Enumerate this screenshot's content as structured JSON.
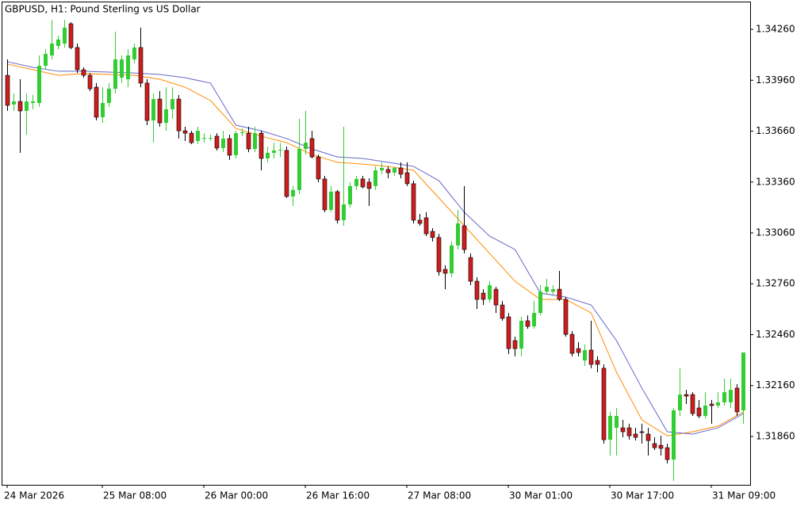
{
  "chart_data": {
    "type": "candlestick",
    "title": "GBPUSD, H1:  Pound Sterling vs US Dollar",
    "categories": [
      "24 Mar 2026",
      null,
      null,
      null,
      null,
      null,
      null,
      null,
      null,
      null,
      null,
      null,
      null,
      null,
      null,
      "25 Mar 08:00",
      null,
      null,
      null,
      null,
      null,
      null,
      null,
      null,
      null,
      null,
      null,
      null,
      null,
      null,
      null,
      "26 Mar 00:00",
      null,
      null,
      null,
      null,
      null,
      null,
      null,
      null,
      null,
      null,
      null,
      null,
      null,
      null,
      null,
      "26 Mar 16:00",
      null,
      null,
      null,
      null,
      null,
      null,
      null,
      null,
      null,
      null,
      null,
      null,
      null,
      null,
      null,
      "27 Mar 08:00",
      null,
      null,
      null,
      null,
      null,
      null,
      null,
      null,
      null,
      null,
      null,
      null,
      null,
      null,
      null,
      "30 Mar 01:00",
      null,
      null,
      null,
      null,
      null,
      null,
      null,
      null,
      null,
      null,
      null,
      null,
      null,
      null,
      null,
      "30 Mar 17:00",
      null,
      null,
      null,
      null,
      null,
      null,
      null,
      null,
      null,
      null,
      null,
      null,
      null,
      null,
      null,
      "31 Mar 09:00",
      null,
      null,
      null,
      null,
      null
    ],
    "open": [
      1.33989,
      1.33817,
      1.33835,
      1.33779,
      1.33826,
      1.33826,
      1.34045,
      1.34106,
      1.34162,
      1.34176,
      1.34293,
      1.34153,
      1.34022,
      1.33989,
      1.33919,
      1.33742,
      1.33826,
      1.3391,
      1.33975,
      1.33966,
      1.34083,
      1.34153,
      1.33943,
      1.33723,
      1.33849,
      1.33709,
      1.33789,
      1.33849,
      1.33662,
      1.33648,
      1.33602,
      1.3362,
      1.33616,
      1.3363,
      1.3356,
      1.33616,
      1.33518,
      1.33648,
      1.33648,
      1.33555,
      1.33648,
      1.33499,
      1.33532,
      1.33546,
      1.33546,
      1.33275,
      1.33313,
      1.33555,
      1.33616,
      1.33508,
      1.33378,
      1.33196,
      1.33303,
      1.33135,
      1.33228,
      1.33336,
      1.33378,
      1.33359,
      1.33336,
      1.33429,
      1.33434,
      1.33415,
      1.33443,
      1.33415,
      1.3335,
      1.33135,
      1.33149,
      1.33069,
      1.33033,
      1.32845,
      1.32822,
      1.32986,
      1.33102,
      1.32915,
      1.32775,
      1.32705,
      1.32668,
      1.32728,
      1.32635,
      1.32565,
      1.32425,
      1.32378,
      1.32542,
      1.32509,
      1.32588,
      1.32714,
      1.32714,
      1.32728,
      1.32668,
      1.32462,
      1.32378,
      1.32308,
      1.32369,
      1.32308,
      1.32262,
      1.31841,
      1.31911,
      1.31911,
      1.31911,
      1.31874,
      1.31888,
      1.31874,
      1.31818,
      1.31808,
      1.31794,
      1.31724,
      1.32014,
      1.32107,
      1.32107,
      1.32028,
      1.31981,
      1.32051,
      1.32042,
      1.32061,
      1.32061,
      1.32145,
      1.32014
    ],
    "high": [
      1.34083,
      1.33882,
      1.33966,
      1.33882,
      1.33873,
      1.34106,
      1.34143,
      1.34316,
      1.34223,
      1.34316,
      1.34302,
      1.34176,
      1.34036,
      1.34003,
      1.33943,
      1.33919,
      1.33943,
      1.34246,
      1.34106,
      1.34143,
      1.34176,
      1.3427,
      1.33966,
      1.33882,
      1.33896,
      1.33919,
      1.33919,
      1.33873,
      1.33686,
      1.33662,
      1.33686,
      1.33648,
      1.33639,
      1.33648,
      1.33662,
      1.33639,
      1.33662,
      1.33676,
      1.33686,
      1.33686,
      1.33662,
      1.33569,
      1.33592,
      1.33592,
      1.33569,
      1.33336,
      1.33733,
      1.33779,
      1.33662,
      1.33522,
      1.33396,
      1.33336,
      1.33313,
      1.33686,
      1.33359,
      1.33396,
      1.33396,
      1.33382,
      1.33452,
      1.33476,
      1.33452,
      1.33452,
      1.33476,
      1.33476,
      1.33368,
      1.33172,
      1.33182,
      1.33088,
      1.33055,
      1.32869,
      1.33009,
      1.33196,
      1.33336,
      1.32939,
      1.32799,
      1.32728,
      1.32775,
      1.32742,
      1.32659,
      1.32588,
      1.32448,
      1.32565,
      1.32574,
      1.32659,
      1.32752,
      1.32789,
      1.32752,
      1.32836,
      1.32682,
      1.32481,
      1.32416,
      1.32402,
      1.32542,
      1.32332,
      1.32285,
      1.32005,
      1.32028,
      1.31958,
      1.31935,
      1.31911,
      1.31935,
      1.31911,
      1.31855,
      1.31864,
      1.31818,
      1.32028,
      1.32262,
      1.32135,
      1.32121,
      1.32075,
      1.32121,
      1.32075,
      1.32121,
      1.32201,
      1.32201,
      1.32168,
      1.32355
    ],
    "low": [
      1.33779,
      1.33779,
      1.33532,
      1.33639,
      1.33789,
      1.33803,
      1.34022,
      1.34083,
      1.34143,
      1.34153,
      1.34143,
      1.34003,
      1.33975,
      1.33896,
      1.33723,
      1.33709,
      1.33803,
      1.33882,
      1.33943,
      1.33919,
      1.34059,
      1.33919,
      1.33695,
      1.33592,
      1.33686,
      1.33662,
      1.33733,
      1.33616,
      1.33602,
      1.33583,
      1.33583,
      1.33592,
      1.33602,
      1.33546,
      1.33536,
      1.3349,
      1.33499,
      1.3363,
      1.33536,
      1.33536,
      1.33429,
      1.33476,
      1.33499,
      1.33508,
      1.33266,
      1.33219,
      1.33289,
      1.33522,
      1.33499,
      1.33359,
      1.33182,
      1.33182,
      1.33116,
      1.33102,
      1.3321,
      1.33313,
      1.33322,
      1.33219,
      1.33313,
      1.33406,
      1.33382,
      1.33396,
      1.33382,
      1.33336,
      1.33116,
      1.33102,
      1.33041,
      1.33009,
      1.32808,
      1.32728,
      1.32799,
      1.32962,
      1.32939,
      1.32752,
      1.32612,
      1.32635,
      1.32649,
      1.32588,
      1.32542,
      1.32346,
      1.32332,
      1.32332,
      1.32495,
      1.32495,
      1.32574,
      1.32696,
      1.32696,
      1.32659,
      1.32448,
      1.32332,
      1.32332,
      1.32276,
      1.32262,
      1.32238,
      1.31818,
      1.31748,
      1.31748,
      1.31855,
      1.31841,
      1.31836,
      1.31818,
      1.31748,
      1.3178,
      1.31748,
      1.31701,
      1.31598,
      1.31981,
      1.32051,
      1.31981,
      1.31967,
      1.31967,
      1.31935,
      1.32028,
      1.32042,
      1.32028,
      1.31981,
      1.31935
    ],
    "close": [
      1.33812,
      1.33835,
      1.33779,
      1.33835,
      1.33835,
      1.34045,
      1.34115,
      1.34176,
      1.342,
      1.3427,
      1.34153,
      1.34022,
      1.33989,
      1.3391,
      1.33742,
      1.33826,
      1.3391,
      1.34083,
      1.34083,
      1.34106,
      1.34153,
      1.33943,
      1.33723,
      1.33849,
      1.33709,
      1.33789,
      1.33849,
      1.33662,
      1.33648,
      1.33592,
      1.33662,
      1.3362,
      1.3362,
      1.3356,
      1.33616,
      1.33518,
      1.33648,
      1.33653,
      1.33555,
      1.33648,
      1.33499,
      1.33532,
      1.33546,
      1.3355,
      1.33275,
      1.33313,
      1.33555,
      1.33592,
      1.33508,
      1.33378,
      1.33196,
      1.33303,
      1.33135,
      1.33228,
      1.33336,
      1.33378,
      1.33331,
      1.33322,
      1.33429,
      1.33443,
      1.33415,
      1.33443,
      1.33406,
      1.3335,
      1.33135,
      1.33116,
      1.33055,
      1.33033,
      1.32831,
      1.32822,
      1.32986,
      1.33116,
      1.32962,
      1.32775,
      1.32668,
      1.32668,
      1.32752,
      1.32635,
      1.32556,
      1.32378,
      1.32378,
      1.32542,
      1.32509,
      1.32588,
      1.32714,
      1.32742,
      1.32728,
      1.32668,
      1.32462,
      1.3235,
      1.32355,
      1.32369,
      1.32285,
      1.32285,
      1.31841,
      1.31981,
      1.31981,
      1.31888,
      1.31864,
      1.31855,
      1.31883,
      1.31836,
      1.31794,
      1.3179,
      1.31724,
      1.32014,
      1.32107,
      1.32098,
      1.31995,
      1.31981,
      1.32042,
      1.32042,
      1.32061,
      1.32121,
      1.32135,
      1.32005,
      1.32355
    ],
    "bull_color": "#32cd32",
    "bear_color": "#d01c1c",
    "bear_outline": "#000000",
    "overlays": [
      {
        "color": "#ff8c00",
        "x": [
          0,
          4,
          8,
          12,
          16,
          20,
          24,
          28,
          32,
          36,
          40,
          44,
          48,
          52,
          56,
          60,
          64,
          68,
          72,
          76,
          80,
          84,
          88,
          92,
          96,
          100,
          104,
          108,
          112,
          116
        ],
        "values": [
          1.34055,
          1.34022,
          1.33989,
          1.33999,
          1.33994,
          1.33989,
          1.33966,
          1.33919,
          1.3384,
          1.33676,
          1.3363,
          1.33592,
          1.33522,
          1.33476,
          1.33466,
          1.33452,
          1.33429,
          1.33266,
          1.33102,
          1.32939,
          1.32775,
          1.32668,
          1.32668,
          1.32588,
          1.32238,
          1.31958,
          1.31864,
          1.31888,
          1.31921,
          1.32005
        ]
      },
      {
        "color": "#6666cc",
        "x": [
          0,
          4,
          8,
          12,
          16,
          20,
          24,
          28,
          32,
          36,
          40,
          44,
          48,
          52,
          56,
          60,
          64,
          68,
          72,
          76,
          80,
          84,
          88,
          92,
          96,
          100,
          104,
          108,
          112,
          116
        ],
        "values": [
          1.34069,
          1.34036,
          1.34013,
          1.34013,
          1.34008,
          1.34003,
          1.33994,
          1.33975,
          1.33943,
          1.33695,
          1.33662,
          1.33616,
          1.33555,
          1.33508,
          1.33499,
          1.33476,
          1.33452,
          1.33368,
          1.33182,
          1.33041,
          1.32962,
          1.32705,
          1.32682,
          1.32635,
          1.32425,
          1.32145,
          1.31888,
          1.31874,
          1.31911,
          1.31995
        ]
      }
    ],
    "ylim": [
      1.31575,
      1.34433
    ],
    "yticks": [
      {
        "value": 1.3426,
        "label": "1.34260"
      },
      {
        "value": 1.3396,
        "label": "1.33960"
      },
      {
        "value": 1.3366,
        "label": "1.33660"
      },
      {
        "value": 1.3336,
        "label": "1.33360"
      },
      {
        "value": 1.3306,
        "label": "1.33060"
      },
      {
        "value": 1.3276,
        "label": "1.32760"
      },
      {
        "value": 1.3246,
        "label": "1.32460"
      },
      {
        "value": 1.3216,
        "label": "1.32160"
      },
      {
        "value": 1.3186,
        "label": "1.31860"
      }
    ],
    "grid": false
  }
}
